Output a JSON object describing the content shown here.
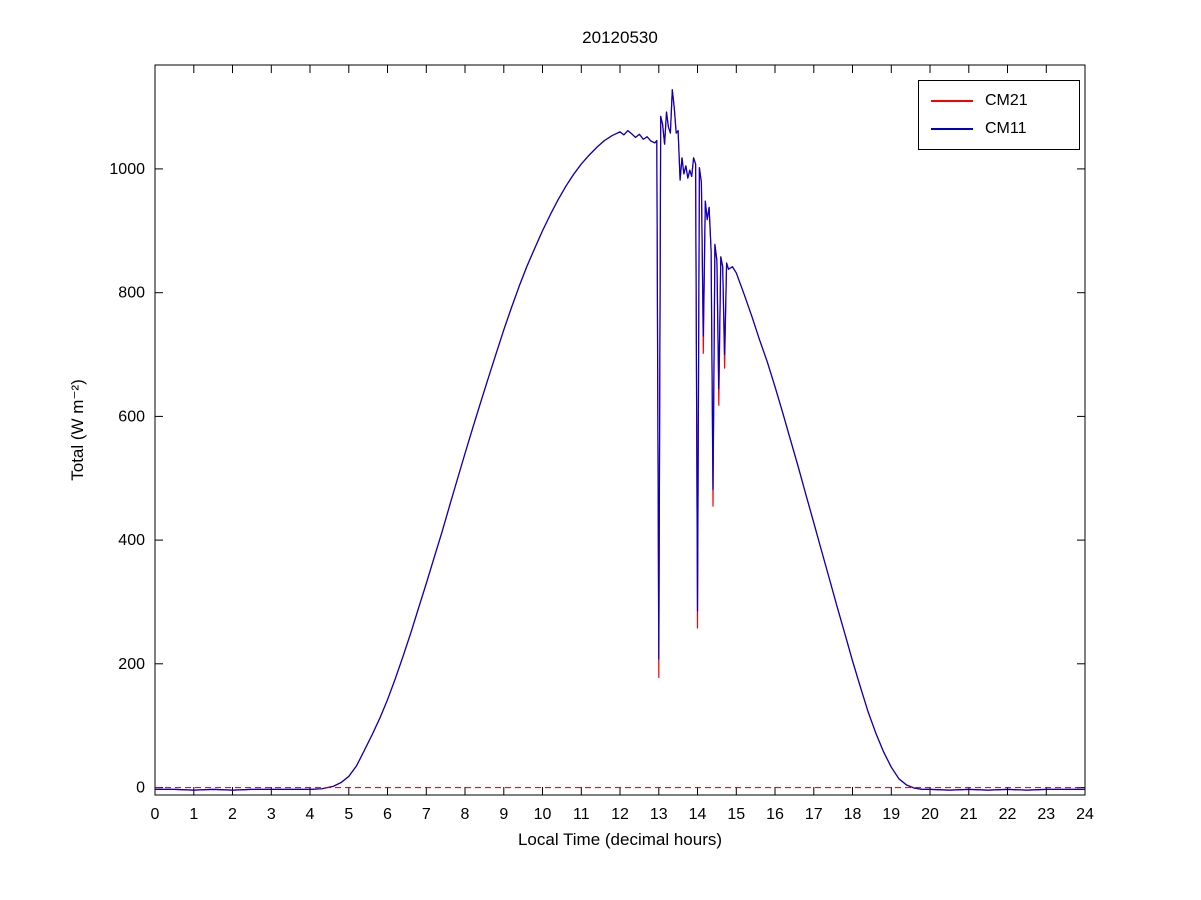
{
  "figure": {
    "title": "20120530",
    "xlabel": "Local Time (decimal hours)",
    "ylabel": "Total (W m⁻²)"
  },
  "legend": {
    "entries": [
      {
        "label": "CM21",
        "color": "#ff0000"
      },
      {
        "label": "CM11",
        "color": "#0000cc"
      }
    ]
  },
  "chart_data": {
    "type": "line",
    "title": "20120530",
    "xlabel": "Local Time (decimal hours)",
    "ylabel": "Total (W m⁻²)",
    "xlim": [
      0,
      24
    ],
    "ylim": [
      -12,
      1168
    ],
    "xticks": [
      0,
      1,
      2,
      3,
      4,
      5,
      6,
      7,
      8,
      9,
      10,
      11,
      12,
      13,
      14,
      15,
      16,
      17,
      18,
      19,
      20,
      21,
      22,
      23,
      24
    ],
    "yticks": [
      0,
      200,
      400,
      600,
      800,
      1000
    ],
    "grid": false,
    "legend_position": "upper-right",
    "reference_line": {
      "y": 0,
      "color": "#cc0000",
      "style": "dashed"
    },
    "x": [
      0,
      0.5,
      1,
      1.5,
      2,
      2.5,
      3,
      3.5,
      4,
      4.3,
      4.6,
      4.8,
      5.0,
      5.2,
      5.4,
      5.6,
      5.8,
      6.0,
      6.2,
      6.4,
      6.6,
      6.8,
      7.0,
      7.2,
      7.4,
      7.6,
      7.8,
      8.0,
      8.2,
      8.4,
      8.6,
      8.8,
      9.0,
      9.2,
      9.4,
      9.6,
      9.8,
      10.0,
      10.2,
      10.4,
      10.6,
      10.8,
      11.0,
      11.2,
      11.4,
      11.6,
      11.8,
      12.0,
      12.1,
      12.2,
      12.3,
      12.4,
      12.5,
      12.6,
      12.7,
      12.8,
      12.9,
      12.95,
      13.0,
      13.05,
      13.1,
      13.15,
      13.2,
      13.25,
      13.3,
      13.35,
      13.4,
      13.45,
      13.5,
      13.55,
      13.6,
      13.65,
      13.7,
      13.75,
      13.8,
      13.85,
      13.9,
      13.95,
      14.0,
      14.05,
      14.1,
      14.15,
      14.2,
      14.25,
      14.3,
      14.35,
      14.4,
      14.45,
      14.5,
      14.55,
      14.6,
      14.65,
      14.7,
      14.75,
      14.8,
      14.9,
      15.0,
      15.2,
      15.4,
      15.6,
      15.8,
      16.0,
      16.2,
      16.4,
      16.6,
      16.8,
      17.0,
      17.2,
      17.4,
      17.6,
      17.8,
      18.0,
      18.2,
      18.4,
      18.6,
      18.8,
      19.0,
      19.2,
      19.4,
      19.6,
      19.8,
      20.0,
      20.5,
      21.0,
      21.5,
      22.0,
      22.5,
      23.0,
      23.5,
      24.0
    ],
    "series": [
      {
        "name": "CM21",
        "color": "#ff0000",
        "values": [
          -3,
          -3,
          -4,
          -3,
          -4,
          -3,
          -3,
          -3,
          -3,
          -2,
          2,
          8,
          18,
          35,
          60,
          85,
          112,
          142,
          176,
          212,
          250,
          290,
          330,
          371,
          412,
          455,
          498,
          540,
          581,
          622,
          662,
          701,
          740,
          776,
          811,
          843,
          872,
          900,
          926,
          950,
          972,
          991,
          1008,
          1022,
          1035,
          1046,
          1054,
          1060,
          1055,
          1062,
          1057,
          1051,
          1056,
          1048,
          1052,
          1045,
          1042,
          1046,
          178,
          1085,
          1072,
          1040,
          1092,
          1068,
          1058,
          1128,
          1098,
          1058,
          1062,
          982,
          1018,
          992,
          1005,
          985,
          998,
          988,
          1018,
          1008,
          258,
          1002,
          978,
          702,
          948,
          918,
          938,
          868,
          455,
          878,
          852,
          618,
          858,
          842,
          678,
          848,
          838,
          842,
          832,
          798,
          762,
          724,
          688,
          648,
          606,
          562,
          518,
          473,
          428,
          383,
          338,
          293,
          249,
          205,
          163,
          123,
          88,
          58,
          33,
          14,
          4,
          -1,
          -3,
          -3,
          -4,
          -3,
          -4,
          -3,
          -4,
          -3,
          -3,
          -3
        ]
      },
      {
        "name": "CM11",
        "color": "#0000cc",
        "values": [
          -3,
          -3,
          -4,
          -3,
          -4,
          -3,
          -3,
          -3,
          -3,
          -2,
          2,
          8,
          18,
          35,
          60,
          85,
          112,
          142,
          176,
          212,
          250,
          290,
          330,
          371,
          412,
          455,
          498,
          540,
          581,
          622,
          662,
          701,
          740,
          776,
          811,
          843,
          872,
          900,
          926,
          950,
          972,
          991,
          1008,
          1022,
          1035,
          1046,
          1054,
          1060,
          1055,
          1062,
          1057,
          1051,
          1056,
          1048,
          1052,
          1045,
          1042,
          1046,
          208,
          1085,
          1072,
          1040,
          1092,
          1068,
          1058,
          1128,
          1098,
          1058,
          1062,
          982,
          1018,
          992,
          1005,
          985,
          998,
          988,
          1018,
          1008,
          285,
          1002,
          978,
          730,
          948,
          918,
          938,
          868,
          482,
          878,
          852,
          645,
          858,
          842,
          700,
          848,
          838,
          842,
          832,
          798,
          762,
          724,
          688,
          648,
          606,
          562,
          518,
          473,
          428,
          383,
          338,
          293,
          249,
          205,
          163,
          123,
          88,
          58,
          33,
          14,
          4,
          -1,
          -3,
          -3,
          -4,
          -3,
          -4,
          -3,
          -4,
          -3,
          -3,
          -3
        ]
      }
    ]
  }
}
